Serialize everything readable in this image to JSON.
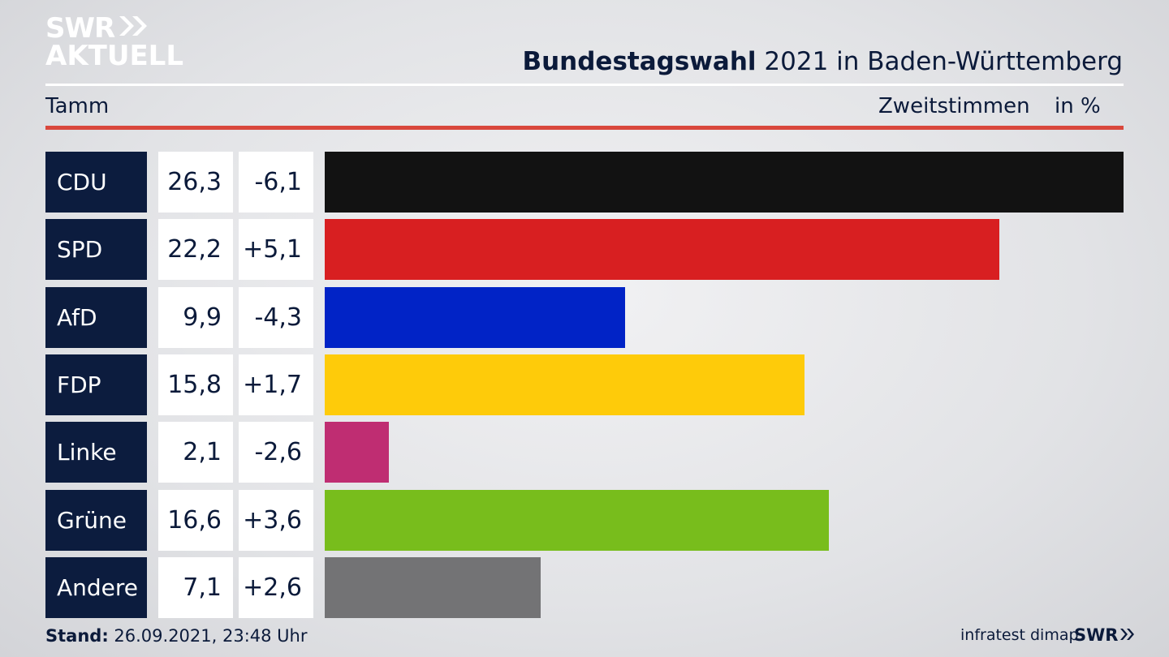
{
  "brand": {
    "line1": "SWR",
    "line2": "AKTUELL",
    "small": "SWR"
  },
  "header": {
    "title_bold": "Bundestagswahl",
    "title_rest": " 2021 in Baden-Württemberg",
    "region": "Tamm",
    "metric": "Zweitstimmen",
    "unit": "in %"
  },
  "footer": {
    "stand_label": "Stand:",
    "stand_value": " 26.09.2021, 23:48 Uhr",
    "source": "infratest dimap"
  },
  "chart_data": {
    "type": "bar",
    "orientation": "horizontal",
    "title": "Bundestagswahl 2021 in Baden-Württemberg",
    "xlabel": "Zweitstimmen in %",
    "categories": [
      "CDU",
      "SPD",
      "AfD",
      "FDP",
      "Linke",
      "Grüne",
      "Andere"
    ],
    "values": [
      26.3,
      22.2,
      9.9,
      15.8,
      2.1,
      16.6,
      7.1
    ],
    "value_labels": [
      "26,3",
      "22,2",
      "9,9",
      "15,8",
      "2,1",
      "16,6",
      "7,1"
    ],
    "diff_labels": [
      "-6,1",
      "+5,1",
      "-4,3",
      "+1,7",
      "-2,6",
      "+3,6",
      "+2,6"
    ],
    "colors": [
      "#121212",
      "#d81f21",
      "#0123c6",
      "#fecb0a",
      "#bf2d72",
      "#78bd1c",
      "#737375"
    ],
    "xlim": [
      0,
      26.3
    ]
  }
}
